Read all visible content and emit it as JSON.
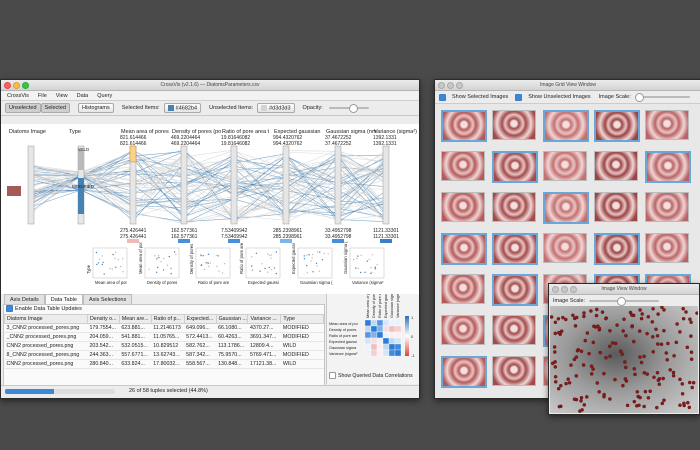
{
  "crossvis": {
    "window_title": "CrossVis (v2.1.6) — DiatomsParameters.csv",
    "menu": [
      "CrossVis",
      "File",
      "View",
      "Data",
      "Query"
    ],
    "toolbar": {
      "unselected": "Unselected",
      "selected": "Selected",
      "histograms": "Histograms",
      "selected_items_label": "Selected Items:",
      "selected_color": "#4682b4",
      "unselected_items_label": "Unselected Items:",
      "unselected_color": "#d3d3d3",
      "opacity_label": "Opacity:",
      "opacity_value": 0.6
    },
    "axes": [
      {
        "name": "Diatoms Image",
        "top": "",
        "bottom": "",
        "range_top": "",
        "range_bot": ""
      },
      {
        "name": "Type",
        "top": "",
        "bottom": "",
        "range_top": "",
        "range_bot": ""
      },
      {
        "name": "Mean area of pores",
        "top": "821.614466",
        "bottom": "275.426441",
        "range_top": "821.614466",
        "range_bot": "275.426441"
      },
      {
        "name": "Density of pores (po",
        "top": "469.2204464",
        "bottom": "162.577361",
        "range_top": "469.2204464",
        "range_bot": "162.577361"
      },
      {
        "name": "Ratio of pore area t",
        "top": "19.81646082",
        "bottom": "7.53409942",
        "range_top": "19.81646082",
        "range_bot": "7.53409942"
      },
      {
        "name": "Expected gaussian",
        "top": "994.4320762",
        "bottom": "285.2398961",
        "range_top": "994.4320762",
        "range_bot": "285.2398961"
      },
      {
        "name": "Gaussian sigma (nm",
        "top": "37.4672252",
        "bottom": "33.4952798",
        "range_top": "37.4672252",
        "range_bot": "33.4952798"
      },
      {
        "name": "Variance (sigma²)",
        "top": "1392.1331",
        "bottom": "1121.33301",
        "range_top": "1392.1331",
        "range_bot": "1121.33301"
      }
    ],
    "type_labels": {
      "wild": "WILD",
      "modified": "MODIFIED"
    },
    "scatter_labels": [
      {
        "x": "Mean area of por",
        "y": "Type"
      },
      {
        "x": "Density of pores",
        "y": "Mean area of por"
      },
      {
        "x": "Ratio of pore are",
        "y": "Density of pores"
      },
      {
        "x": "Expected gaussi",
        "y": "Ratio of pore are"
      },
      {
        "x": "Gaussian sigma (",
        "y": "Expected gaussi"
      },
      {
        "x": "Variance (sigma²",
        "y": "Gaussian sigma ("
      }
    ],
    "bottom_tabs": [
      "Axis Details",
      "Data Table",
      "Axis Selections"
    ],
    "enable_updates": "Enable Data Table Updates",
    "table": {
      "columns": [
        "Diatoms Image",
        "Density o...",
        "Mean are...",
        "Ratio of p...",
        "Expected...",
        "Gaussian ...",
        "Variance ...",
        "Type"
      ],
      "rows": [
        [
          "3_CNN2 processed_pores.png",
          "179.7554...",
          "623.881...",
          "11.2146173",
          "649.096...",
          "66.1080...",
          "4370.27...",
          "MODIFIED"
        ],
        [
          "_CNN2 processed_pores.png",
          "204.059...",
          "541.881...",
          "11.05765...",
          "572.4413...",
          "60.4263...",
          "3691.347...",
          "MODIFIED"
        ],
        [
          "CNN2 processed_pores.png",
          "203.542...",
          "532.0515...",
          "10.829512",
          "582.762...",
          "113.1786...",
          "12809.4...",
          "WILD"
        ],
        [
          "8_CNN2 processed_pores.png",
          "244.363...",
          "557.6771...",
          "13.62743...",
          "587.342...",
          "75.9570...",
          "5769.471...",
          "MODIFIED"
        ],
        [
          "CNN2 processed_pores.png",
          "280.840...",
          "633.824...",
          "17.80032...",
          "558.567...",
          "130.848...",
          "17121.38...",
          "WILD"
        ]
      ]
    },
    "status": "26 of 58 tuples selected (44.8%)",
    "status_fraction": 0.448,
    "correlation_labels": [
      "Mean area of por",
      "Density of pores",
      "Ratio of pore are",
      "Expected gaussi",
      "Gaussian sigma",
      "Variance (sigma²"
    ],
    "legend_ticks": [
      "1",
      "0",
      "-1"
    ],
    "show_corr": "Show Queried Data Correlations"
  },
  "grid_window": {
    "title": "Image Grid View Window",
    "show_selected": "Show Selected Images",
    "show_unselected": "Show Unselected Images",
    "image_scale": "Image Scale:"
  },
  "single_window": {
    "title": "Image View Window",
    "image_scale": "Image Scale:"
  }
}
